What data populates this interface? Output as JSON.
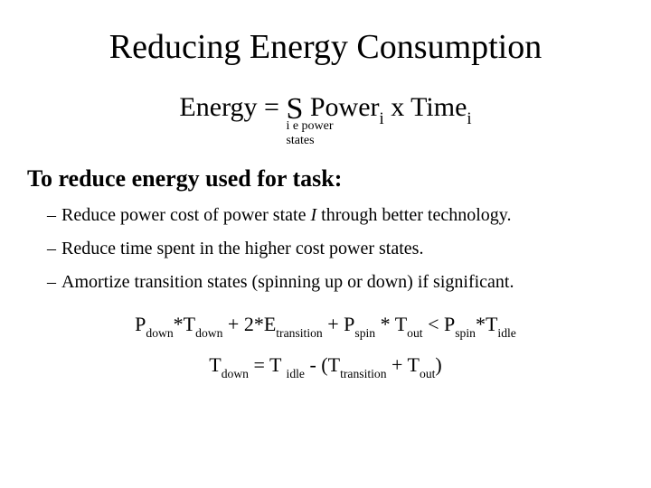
{
  "colors": {
    "background": "#ffffff",
    "text": "#000000"
  },
  "typography": {
    "family": "Times New Roman, serif",
    "title_fontsize": 38,
    "equation_fontsize": 30,
    "section_fontsize": 26,
    "bullet_fontsize": 20,
    "formula_fontsize": 22,
    "subscript_scale": 0.62
  },
  "title": "Reducing Energy Consumption",
  "energyEq": {
    "lhs": "Energy = ",
    "sigma": "S",
    "sigmaLower1a": "i ",
    "sigmaLower1b": "e",
    "sigmaLower1c": " power",
    "sigmaLower2": "states",
    "rhs1": "   Power",
    "rhs_sub1": "i",
    "rhs2": " x Time",
    "rhs_sub2": "i"
  },
  "sectionHead": "To reduce energy used for task:",
  "bullets": [
    {
      "text_a": "Reduce power cost of power state ",
      "text_i": "I",
      "text_b": " through better technology."
    },
    {
      "text_a": "Reduce time spent in the higher cost power states.",
      "text_i": "",
      "text_b": ""
    },
    {
      "text_a": "Amortize transition states (spinning up or down) if significant.",
      "text_i": "",
      "text_b": ""
    }
  ],
  "formula1": {
    "p1": "P",
    "s1": "down",
    "p2": "*T",
    "s2": "down",
    "p3": " + 2*E",
    "s3": "transition",
    "p4": " + P",
    "s4": "spin",
    "p5": " * T",
    "s5": "out",
    "p6": " < P",
    "s6": "spin",
    "p7": "*T",
    "s7": "idle"
  },
  "formula2": {
    "p1": "T",
    "s1": "down",
    "p2": " = T ",
    "s2": "idle",
    "p3": " - (T",
    "s3": "transition",
    "p4": " + T",
    "s4": "out",
    "p5": ")"
  }
}
